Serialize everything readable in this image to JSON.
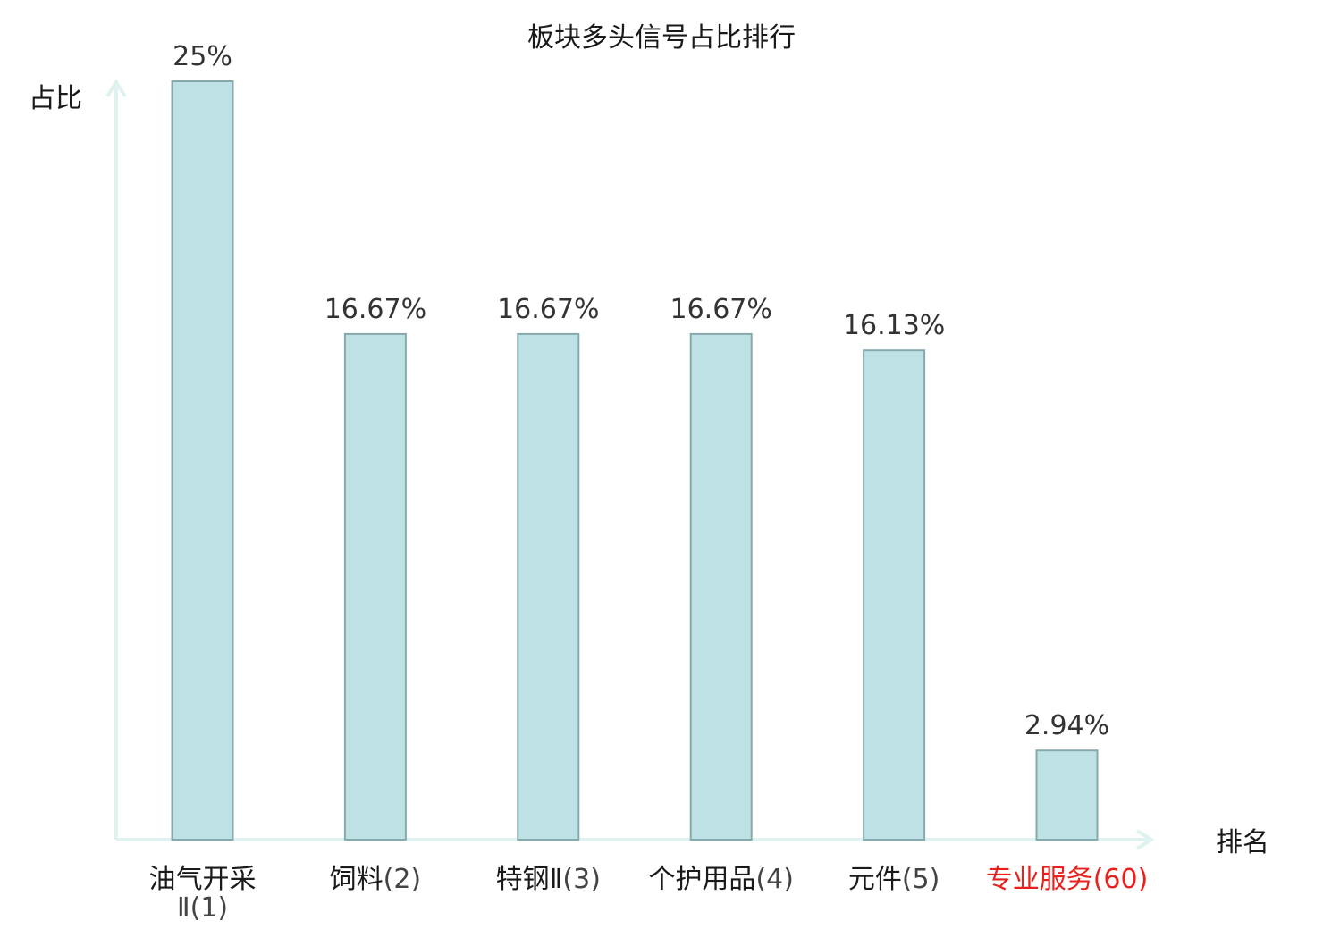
{
  "chart_data": {
    "type": "bar",
    "title": "板块多头信号占比排行",
    "ylabel": "占比",
    "xlabel": "排名",
    "ylim": [
      0,
      25
    ],
    "grid": false,
    "categories": [
      {
        "name": "油气开采Ⅱ",
        "rank": "(1)",
        "value": 25,
        "label": "25%",
        "highlight": false
      },
      {
        "name": "饲料",
        "rank": "(2)",
        "value": 16.67,
        "label": "16.67%",
        "highlight": false
      },
      {
        "name": "特钢Ⅱ",
        "rank": "(3)",
        "value": 16.67,
        "label": "16.67%",
        "highlight": false
      },
      {
        "name": "个护用品",
        "rank": "(4)",
        "value": 16.67,
        "label": "16.67%",
        "highlight": false
      },
      {
        "name": "元件",
        "rank": "(5)",
        "value": 16.13,
        "label": "16.13%",
        "highlight": false
      },
      {
        "name": "专业服务",
        "rank": "(60)",
        "value": 2.94,
        "label": "2.94%",
        "highlight": true
      }
    ],
    "colors": {
      "bar_fill": "#bde1e4",
      "bar_stroke": "#86a9ac",
      "axis": "#dff2ef",
      "highlight_text": "#e8211c"
    }
  }
}
